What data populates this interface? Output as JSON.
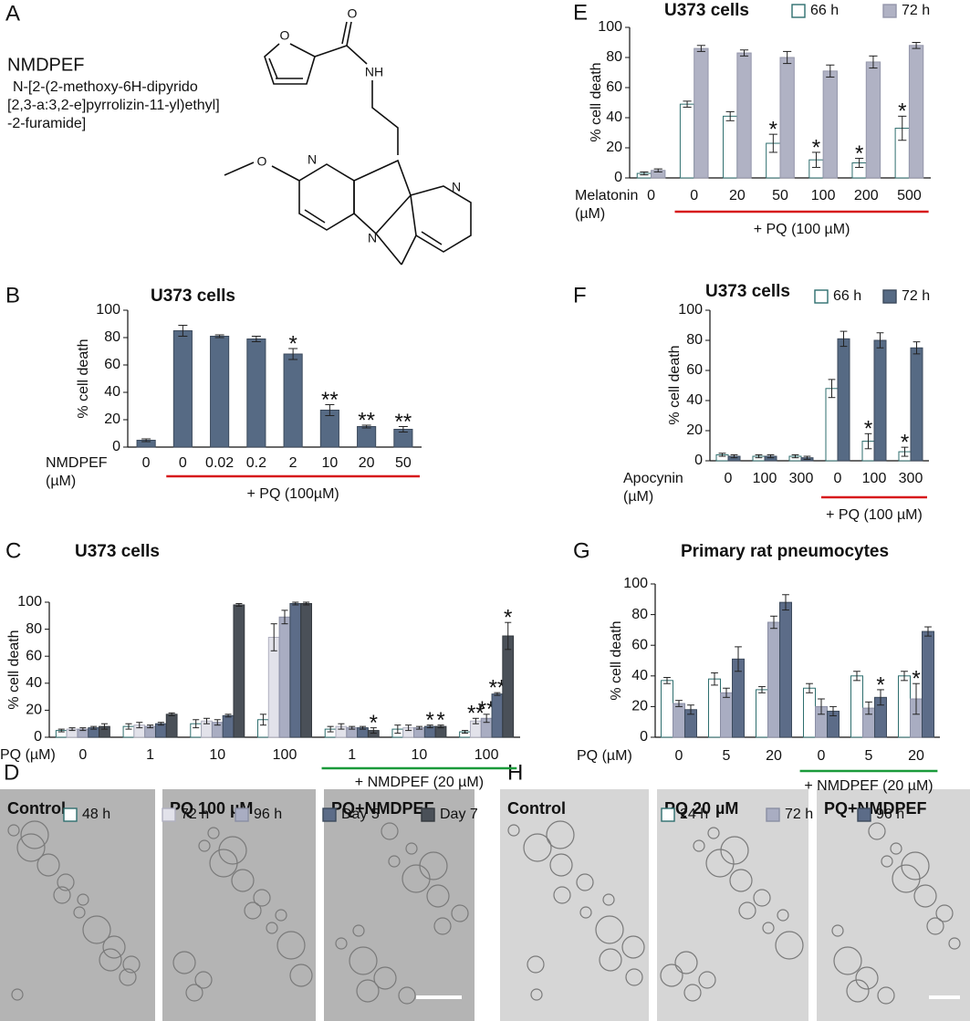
{
  "compound": {
    "panel": "A",
    "name": "NMDPEF",
    "iupac": [
      "N-[2-(2-methoxy-6H-dipyrido",
      "[2,3-a:3,2-e]pyrrolizin-11-yl)ethyl]",
      "-2-furamide]"
    ],
    "atoms": [
      "O",
      "O",
      "NH",
      "N",
      "O",
      "N",
      "N"
    ]
  },
  "images": [
    {
      "panel": "D",
      "captions": [
        "Control",
        "PQ 100 µM",
        "PQ+NMDPEF"
      ]
    },
    {
      "panel": "H",
      "captions": [
        "Control",
        "PQ 20 µM",
        "PQ+NMDPEF"
      ]
    }
  ],
  "chart_data": [
    {
      "type": "bar",
      "panel": "B",
      "title": "U373 cells",
      "ylabel": "% cell death",
      "xlabel": [
        "NMDPEF",
        "(µM)"
      ],
      "group_label": "+ PQ (100µM)",
      "group_color": "#d7191c",
      "categories": [
        "0",
        "0",
        "0.02",
        "0.2",
        "2",
        "10",
        "20",
        "50"
      ],
      "series": [
        {
          "color": "#566a84",
          "edgecolor": "#3c4a5c",
          "values": [
            5,
            85,
            81,
            79,
            68,
            27,
            15,
            13
          ],
          "errors": [
            1,
            4,
            1,
            2,
            4,
            4,
            1,
            2
          ],
          "stars": [
            null,
            null,
            null,
            null,
            "*",
            "**",
            "**",
            "**"
          ]
        }
      ],
      "ylim": [
        0,
        100
      ],
      "yticks": [
        0,
        20,
        40,
        60,
        80,
        100
      ]
    },
    {
      "type": "bar",
      "panel": "C",
      "title": "U373 cells",
      "ylabel": "% cell death",
      "xlabel": [
        "PQ (µM)"
      ],
      "group_label": "+ NMDPEF (20 µM)",
      "group_color": "#1a9a3a",
      "categories": [
        "0",
        "1",
        "10",
        "100",
        "1",
        "10",
        "100"
      ],
      "series": [
        {
          "name": "48 h",
          "color": "#ffffff",
          "edgecolor": "#2e6e6e",
          "values": [
            5,
            8,
            10,
            13,
            6,
            6,
            4
          ],
          "errors": [
            1,
            2,
            3,
            4,
            2,
            3,
            1
          ],
          "stars": [
            null,
            null,
            null,
            null,
            null,
            null,
            null
          ]
        },
        {
          "name": "72 h",
          "color": "#e2e2ea",
          "edgecolor": "#b0b0c0",
          "values": [
            6,
            9,
            12,
            74,
            8,
            7,
            12
          ],
          "errors": [
            1,
            2,
            2,
            10,
            2,
            2,
            2
          ],
          "stars": [
            null,
            null,
            null,
            null,
            null,
            null,
            "**"
          ]
        },
        {
          "name": "96 h",
          "color": "#a9adc2",
          "edgecolor": "#8a8ea4",
          "values": [
            6,
            8,
            11,
            89,
            7,
            7,
            14
          ],
          "errors": [
            1,
            1,
            2,
            5,
            1,
            1,
            3
          ],
          "stars": [
            null,
            null,
            null,
            null,
            null,
            null,
            "**"
          ]
        },
        {
          "name": "Day 5",
          "color": "#5c6c88",
          "edgecolor": "#3c4a5c",
          "values": [
            7,
            10,
            16,
            99,
            7,
            8,
            32
          ],
          "errors": [
            1,
            1,
            1,
            1,
            1,
            1,
            1
          ],
          "stars": [
            null,
            null,
            null,
            null,
            null,
            "*",
            "**"
          ]
        },
        {
          "name": "Day 7",
          "color": "#4a5058",
          "edgecolor": "#33383e",
          "values": [
            8,
            17,
            98,
            99,
            5,
            8,
            75
          ],
          "errors": [
            2,
            1,
            1,
            1,
            2,
            1,
            10
          ],
          "stars": [
            null,
            null,
            null,
            null,
            "*",
            "*",
            "*"
          ]
        }
      ],
      "ylim": [
        0,
        100
      ],
      "yticks": [
        0,
        20,
        40,
        60,
        80,
        100
      ]
    },
    {
      "type": "bar",
      "panel": "E",
      "title": "U373 cells",
      "ylabel": "% cell death",
      "xlabel": [
        "Melatonin",
        "(µM)"
      ],
      "group_label": "+ PQ (100 µM)",
      "group_color": "#d7191c",
      "categories": [
        "0",
        "0",
        "20",
        "50",
        "100",
        "200",
        "500"
      ],
      "series": [
        {
          "name": "66 h",
          "color": "#ffffff",
          "edgecolor": "#2e6e6e",
          "values": [
            3,
            49,
            41,
            23,
            12,
            10,
            33
          ],
          "errors": [
            1,
            2,
            3,
            6,
            5,
            3,
            8
          ],
          "stars": [
            null,
            null,
            null,
            "*",
            "*",
            "*",
            "*"
          ]
        },
        {
          "name": "72 h",
          "color": "#b0b2c4",
          "edgecolor": "#9496aa",
          "values": [
            5,
            86,
            83,
            80,
            71,
            77,
            88
          ],
          "errors": [
            1,
            2,
            2,
            4,
            4,
            4,
            2
          ],
          "stars": [
            null,
            null,
            null,
            null,
            null,
            null,
            null
          ]
        }
      ],
      "ylim": [
        0,
        100
      ],
      "yticks": [
        0,
        20,
        40,
        60,
        80,
        100
      ]
    },
    {
      "type": "bar",
      "panel": "F",
      "title": "U373 cells",
      "ylabel": "% cell death",
      "xlabel": [
        "Apocynin",
        "(µM)"
      ],
      "group_label": "+ PQ (100 µM)",
      "group_color": "#d7191c",
      "categories": [
        "0",
        "100",
        "300",
        "0",
        "100",
        "300"
      ],
      "series": [
        {
          "name": "66 h",
          "color": "#ffffff",
          "edgecolor": "#2e6e6e",
          "values": [
            4,
            3,
            3,
            48,
            13,
            6
          ],
          "errors": [
            1,
            1,
            1,
            6,
            5,
            3
          ],
          "stars": [
            null,
            null,
            null,
            null,
            "*",
            "*"
          ]
        },
        {
          "name": "72 h",
          "color": "#566a84",
          "edgecolor": "#3c4a5c",
          "values": [
            3,
            3,
            2,
            81,
            80,
            75
          ],
          "errors": [
            1,
            1,
            1,
            5,
            5,
            4
          ],
          "stars": [
            null,
            null,
            null,
            null,
            null,
            null
          ]
        }
      ],
      "ylim": [
        0,
        100
      ],
      "yticks": [
        0,
        20,
        40,
        60,
        80,
        100
      ]
    },
    {
      "type": "bar",
      "panel": "G",
      "title": "Primary rat pneumocytes",
      "ylabel": "% cell death",
      "xlabel": [
        "PQ (µM)"
      ],
      "group_label": "+ NMDPEF (20 µM)",
      "group_color": "#1a9a3a",
      "categories": [
        "0",
        "5",
        "20",
        "0",
        "5",
        "20"
      ],
      "series": [
        {
          "name": "24 h",
          "color": "#ffffff",
          "edgecolor": "#2e6e6e",
          "values": [
            37,
            38,
            31,
            32,
            40,
            40
          ],
          "errors": [
            2,
            4,
            2,
            3,
            3,
            3
          ],
          "stars": [
            null,
            null,
            null,
            null,
            null,
            null
          ]
        },
        {
          "name": "72 h",
          "color": "#a9adc2",
          "edgecolor": "#8a8ea4",
          "values": [
            22,
            29,
            75,
            20,
            19,
            25
          ],
          "errors": [
            2,
            3,
            4,
            5,
            4,
            10
          ],
          "stars": [
            null,
            null,
            null,
            null,
            null,
            "*"
          ]
        },
        {
          "name": "96 h",
          "color": "#5c6c88",
          "edgecolor": "#3c4a5c",
          "values": [
            18,
            51,
            88,
            17,
            26,
            69
          ],
          "errors": [
            3,
            8,
            5,
            3,
            5,
            3
          ],
          "stars": [
            null,
            null,
            null,
            null,
            "*",
            null
          ]
        }
      ],
      "ylim": [
        0,
        100
      ],
      "yticks": [
        0,
        20,
        40,
        60,
        80,
        100
      ]
    }
  ]
}
